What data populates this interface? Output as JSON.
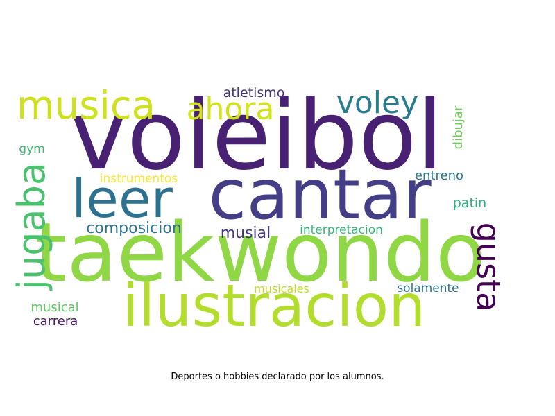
{
  "caption": "Deportes o hobbies declarado por los alumnos.",
  "words": [
    {
      "text": "voleibol",
      "color": "#482173"
    },
    {
      "text": "taekwondo",
      "color": "#8fd744"
    },
    {
      "text": "ilustracion",
      "color": "#b2dd2c"
    },
    {
      "text": "cantar",
      "color": "#433e85"
    },
    {
      "text": "leer",
      "color": "#2c728e"
    },
    {
      "text": "musica",
      "color": "#cde11d"
    },
    {
      "text": "ahora",
      "color": "#d2e21b"
    },
    {
      "text": "voley",
      "color": "#287c8e"
    },
    {
      "text": "jugaba",
      "color": "#4ac16d"
    },
    {
      "text": "gusta",
      "color": "#440154"
    },
    {
      "text": "composicion",
      "color": "#2c728e"
    },
    {
      "text": "musial",
      "color": "#443a83"
    },
    {
      "text": "interpretacion",
      "color": "#35b779"
    },
    {
      "text": "atletismo",
      "color": "#46337e"
    },
    {
      "text": "instrumentos",
      "color": "#fde725"
    },
    {
      "text": "entreno",
      "color": "#2a788e"
    },
    {
      "text": "patin",
      "color": "#2ab07f"
    },
    {
      "text": "dibujar",
      "color": "#6ece58"
    },
    {
      "text": "gym",
      "color": "#3bbb75"
    },
    {
      "text": "musicales",
      "color": "#c0df25"
    },
    {
      "text": "solamente",
      "color": "#2c738e"
    },
    {
      "text": "musical",
      "color": "#5ec962"
    },
    {
      "text": "carrera",
      "color": "#481a6c"
    }
  ]
}
